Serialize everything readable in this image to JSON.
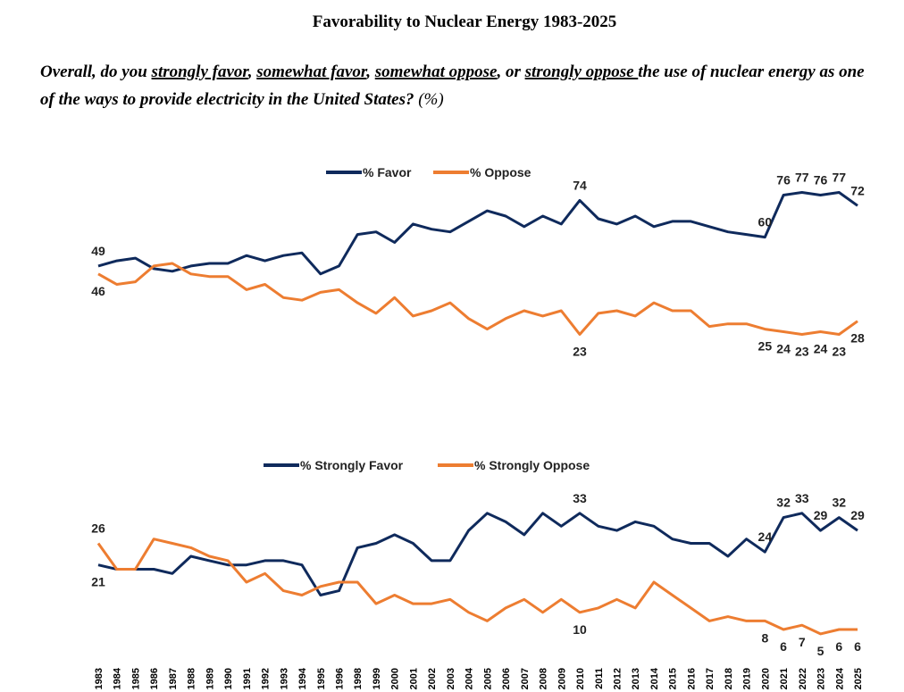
{
  "title": "Favorability to Nuclear Energy 1983-2025",
  "subtitle": [
    {
      "text": "Overall, do you ",
      "underline": false
    },
    {
      "text": "strongly favor",
      "underline": true
    },
    {
      "text": ", ",
      "underline": false
    },
    {
      "text": "somewhat favor",
      "underline": true
    },
    {
      "text": ", ",
      "underline": false
    },
    {
      "text": "somewhat oppose",
      "underline": true
    },
    {
      "text": ", or ",
      "underline": false
    },
    {
      "text": "strongly oppose ",
      "underline": true
    },
    {
      "text": "the use of nuclear energy as one of the ways to provide electricity in the United States?",
      "underline": false
    },
    {
      "text": " (%)",
      "underline": false,
      "plain": true
    }
  ],
  "categories": [
    "1983",
    "1984",
    "1985",
    "1986",
    "1987",
    "1988",
    "1989",
    "1990",
    "1991",
    "1992",
    "1993",
    "1994",
    "1995",
    "1996",
    "1998",
    "1999",
    "2000",
    "2001",
    "2002",
    "2003",
    "2004",
    "2005",
    "2006",
    "2007",
    "2008",
    "2009",
    "2010",
    "2011",
    "2012",
    "2013",
    "2014",
    "2015",
    "2016",
    "2017",
    "2018",
    "2019",
    "2020",
    "2021",
    "2022",
    "2023",
    "2024",
    "2025"
  ],
  "chart_data": [
    {
      "type": "line",
      "ylim": [
        15,
        85
      ],
      "series": [
        {
          "name": "% Favor",
          "color": "#0f2a5c",
          "labeled": [
            0,
            26,
            36,
            37,
            38,
            39,
            40,
            41
          ],
          "values": [
            49,
            51,
            52,
            48,
            47,
            49,
            50,
            50,
            53,
            51,
            53,
            54,
            46,
            49,
            61,
            62,
            58,
            65,
            63,
            62,
            66,
            70,
            68,
            64,
            68,
            65,
            74,
            67,
            65,
            68,
            64,
            66,
            66,
            64,
            62,
            61,
            60,
            76,
            77,
            76,
            77,
            72
          ]
        },
        {
          "name": "% Oppose",
          "color": "#ed7d31",
          "labeled": [
            0,
            26,
            36,
            37,
            38,
            39,
            40,
            41
          ],
          "values": [
            46,
            42,
            43,
            49,
            50,
            46,
            45,
            45,
            40,
            42,
            37,
            36,
            39,
            40,
            35,
            31,
            37,
            30,
            32,
            35,
            29,
            25,
            29,
            32,
            30,
            32,
            23,
            31,
            32,
            30,
            35,
            32,
            32,
            26,
            27,
            27,
            25,
            24,
            23,
            24,
            23,
            28
          ]
        }
      ]
    },
    {
      "type": "line",
      "ylim": [
        0,
        40
      ],
      "series": [
        {
          "name": "% Strongly Favor",
          "color": "#0f2a5c",
          "labeled": [
            0,
            26,
            36,
            37,
            38,
            39,
            40,
            41
          ],
          "values": [
            21,
            20,
            20,
            20,
            19,
            23,
            22,
            21,
            21,
            22,
            22,
            21,
            14,
            15,
            25,
            26,
            28,
            26,
            22,
            22,
            29,
            33,
            31,
            28,
            33,
            30,
            33,
            30,
            29,
            31,
            30,
            27,
            26,
            26,
            23,
            27,
            24,
            32,
            33,
            29,
            32,
            29
          ]
        },
        {
          "name": "% Strongly Oppose",
          "color": "#ed7d31",
          "labeled": [
            0,
            26,
            36,
            37,
            38,
            39,
            40,
            41
          ],
          "values": [
            26,
            20,
            20,
            27,
            26,
            25,
            23,
            22,
            17,
            19,
            15,
            14,
            16,
            17,
            17,
            12,
            14,
            12,
            12,
            13,
            10,
            8,
            11,
            13,
            10,
            13,
            10,
            11,
            13,
            11,
            17,
            14,
            11,
            8,
            9,
            8,
            8,
            6,
            7,
            5,
            6,
            6
          ]
        }
      ]
    }
  ]
}
